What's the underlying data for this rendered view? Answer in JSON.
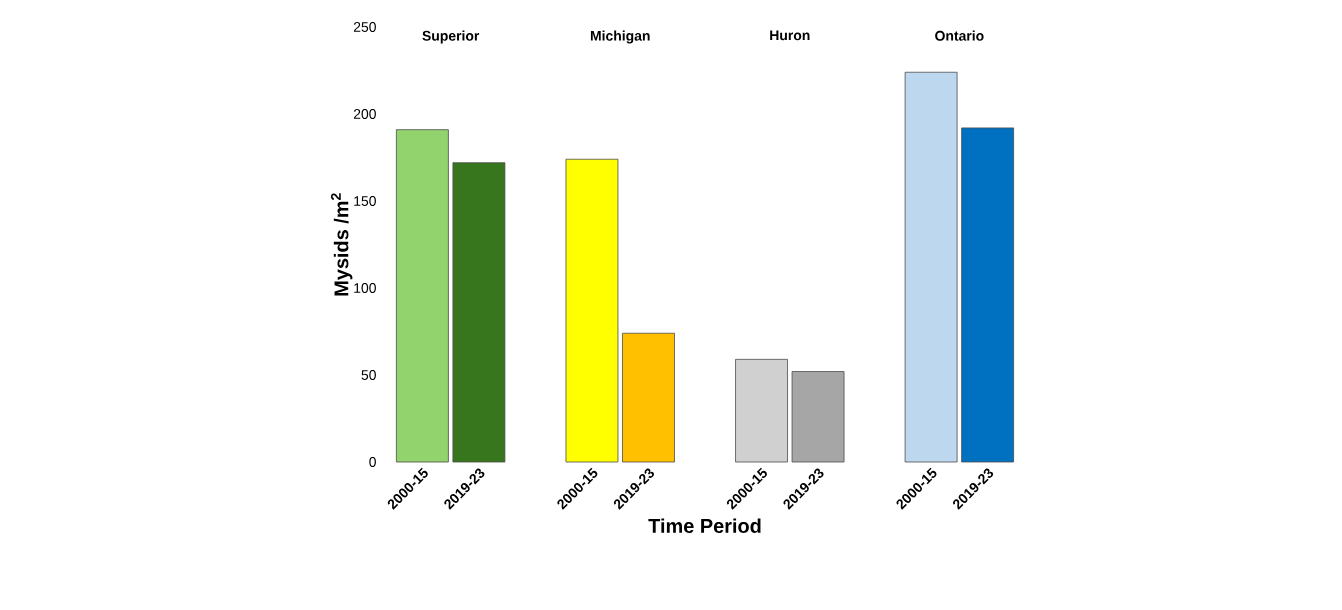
{
  "chart_data": {
    "type": "bar",
    "xlabel": "Time Period",
    "ylabel": "Mysids /m$^{2}$",
    "categories": [
      "2000-15",
      "2019-23",
      "2000-15",
      "2019-23",
      "2000-15",
      "2019-23",
      "2000-15",
      "2019-23"
    ],
    "values": [
      191,
      172,
      174,
      74,
      59,
      52,
      224,
      192
    ],
    "colors": [
      "#92d36e",
      "#38761d",
      "#ffff00",
      "#ffc000",
      "#d0d0d0",
      "#a6a6a6",
      "#bdd7ee",
      "#0070c0"
    ],
    "annotations": [
      "Superior",
      "Michigan",
      "Huron",
      "Ontario"
    ],
    "ylim": [
      0,
      250
    ],
    "yticks": [
      0,
      50,
      100,
      150,
      200,
      250
    ]
  }
}
